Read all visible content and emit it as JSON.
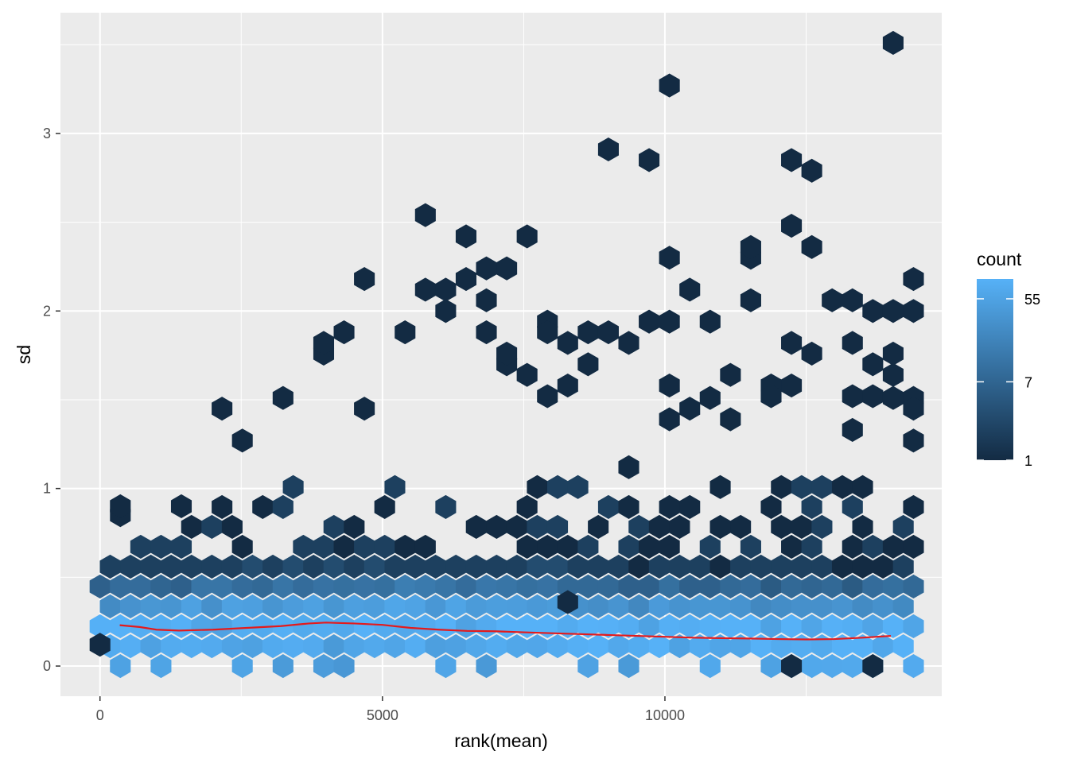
{
  "chart_data": {
    "type": "heatmap",
    "subtype": "hexbin",
    "title": "",
    "xlabel": "rank(mean)",
    "ylabel": "sd",
    "xlim": [
      -700,
      14900
    ],
    "ylim": [
      -0.17,
      3.68
    ],
    "xticks": [
      0,
      5000,
      10000
    ],
    "xtick_labels": [
      "0",
      "5000",
      "10000"
    ],
    "yticks": [
      0,
      1,
      2,
      3
    ],
    "ytick_labels": [
      "0",
      "1",
      "2",
      "3"
    ],
    "grid": true,
    "legend": {
      "title": "count",
      "placement": "right",
      "scale": "log",
      "min": 1,
      "max": 90,
      "breaks": [
        1,
        7,
        55
      ],
      "break_labels": [
        "1",
        "7",
        "55"
      ],
      "color_low": "#132B43",
      "color_high": "#56B1F7"
    },
    "hex_grid": {
      "x_step": 360,
      "y_step": 0.112
    },
    "outliers": [
      [
        0,
        0.12
      ],
      [
        360,
        0.85
      ],
      [
        360,
        0.9
      ],
      [
        1440,
        0.9
      ],
      [
        2160,
        1.45
      ],
      [
        2520,
        1.27
      ],
      [
        3240,
        1.51
      ],
      [
        3960,
        1.76
      ],
      [
        3960,
        1.82
      ],
      [
        4320,
        1.88
      ],
      [
        4680,
        2.18
      ],
      [
        4680,
        1.45
      ],
      [
        5400,
        1.88
      ],
      [
        5760,
        2.12
      ],
      [
        5760,
        2.54
      ],
      [
        6120,
        2.12
      ],
      [
        6120,
        2.0
      ],
      [
        6480,
        2.42
      ],
      [
        6480,
        2.18
      ],
      [
        6840,
        2.24
      ],
      [
        6840,
        2.06
      ],
      [
        6840,
        1.88
      ],
      [
        7200,
        2.24
      ],
      [
        7200,
        1.7
      ],
      [
        7200,
        1.76
      ],
      [
        7560,
        2.42
      ],
      [
        7560,
        1.64
      ],
      [
        7920,
        1.94
      ],
      [
        7920,
        1.88
      ],
      [
        7920,
        1.52
      ],
      [
        8280,
        1.82
      ],
      [
        8280,
        1.58
      ],
      [
        8640,
        1.88
      ],
      [
        8640,
        1.7
      ],
      [
        9000,
        2.91
      ],
      [
        9000,
        1.88
      ],
      [
        9360,
        1.82
      ],
      [
        9720,
        2.85
      ],
      [
        9720,
        1.94
      ],
      [
        10080,
        3.27
      ],
      [
        10080,
        2.3
      ],
      [
        10080,
        1.94
      ],
      [
        10080,
        1.58
      ],
      [
        10080,
        1.39
      ],
      [
        10440,
        2.12
      ],
      [
        10440,
        1.45
      ],
      [
        10800,
        1.94
      ],
      [
        10800,
        1.51
      ],
      [
        11160,
        1.64
      ],
      [
        11160,
        1.39
      ],
      [
        11520,
        2.3
      ],
      [
        11520,
        2.36
      ],
      [
        11520,
        2.06
      ],
      [
        11880,
        1.58
      ],
      [
        11880,
        1.52
      ],
      [
        12240,
        2.85
      ],
      [
        12240,
        2.48
      ],
      [
        12240,
        1.82
      ],
      [
        12240,
        1.58
      ],
      [
        12600,
        2.79
      ],
      [
        12600,
        2.36
      ],
      [
        12600,
        1.76
      ],
      [
        12960,
        2.06
      ],
      [
        13320,
        1.82
      ],
      [
        13320,
        1.52
      ],
      [
        13320,
        1.33
      ],
      [
        13320,
        2.06
      ],
      [
        13680,
        2.0
      ],
      [
        13680,
        1.7
      ],
      [
        13680,
        1.52
      ],
      [
        14040,
        1.76
      ],
      [
        14040,
        1.64
      ],
      [
        14040,
        1.51
      ],
      [
        14040,
        2.0
      ],
      [
        14040,
        3.51
      ],
      [
        14400,
        2.0
      ],
      [
        14400,
        1.51
      ],
      [
        14400,
        1.27
      ],
      [
        14400,
        1.45
      ],
      [
        14400,
        2.18
      ],
      [
        12240,
        0.0
      ],
      [
        13680,
        0.0
      ],
      [
        8280,
        0.36
      ]
    ],
    "smooth_line": {
      "color": "#E41A1C",
      "x": [
        350,
        700,
        1000,
        1400,
        2000,
        2600,
        3200,
        3700,
        4000,
        4500,
        5000,
        5500,
        6000,
        6500,
        7000,
        7500,
        8000,
        8500,
        9000,
        9500,
        10000,
        10500,
        11000,
        11500,
        12000,
        12500,
        13000,
        13500,
        14000
      ],
      "y": [
        0.23,
        0.22,
        0.205,
        0.2,
        0.205,
        0.215,
        0.225,
        0.24,
        0.245,
        0.24,
        0.232,
        0.215,
        0.205,
        0.198,
        0.196,
        0.19,
        0.185,
        0.18,
        0.175,
        0.17,
        0.165,
        0.16,
        0.157,
        0.155,
        0.152,
        0.15,
        0.152,
        0.16,
        0.17
      ]
    }
  }
}
